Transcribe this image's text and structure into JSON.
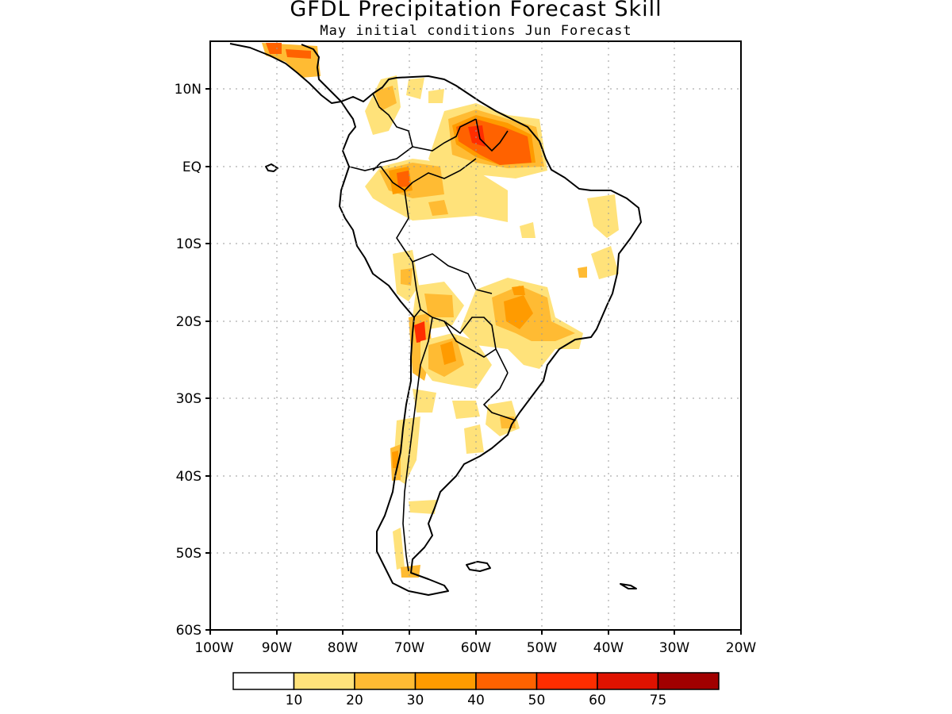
{
  "title": "GFDL Precipitation Forecast Skill",
  "subtitle": "May initial conditions  Jun Forecast",
  "map": {
    "projection": "cylindrical equidistant",
    "lon_range": [
      -100,
      -20
    ],
    "lat_range": [
      -60,
      15
    ],
    "grid_lines": "dotted",
    "x_ticks": [
      "100W",
      "90W",
      "80W",
      "70W",
      "60W",
      "50W",
      "40W",
      "30W",
      "20W"
    ],
    "y_ticks": [
      "10N",
      "EQ",
      "10S",
      "20S",
      "30S",
      "40S",
      "50S",
      "60S"
    ]
  },
  "legend": {
    "colors": [
      "#ffffff",
      "#ffe27a",
      "#ffbb33",
      "#ff9b00",
      "#ff6200",
      "#ff2d00",
      "#df1200",
      "#a10000"
    ],
    "labels": [
      "10",
      "20",
      "30",
      "40",
      "50",
      "60",
      "75"
    ]
  }
}
